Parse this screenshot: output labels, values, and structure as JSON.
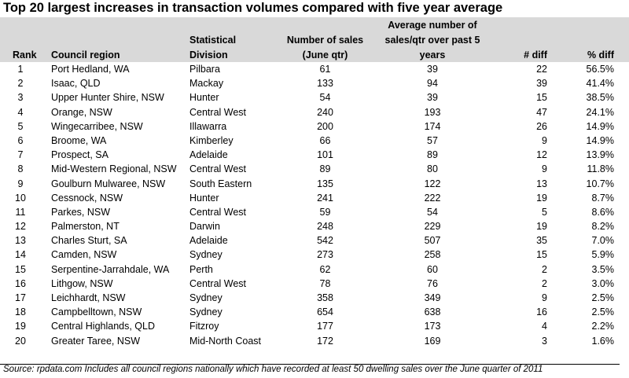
{
  "title": "Top 20 largest increases in transaction volumes compared with five year average",
  "headers": {
    "rank": "Rank",
    "region": "Council region",
    "division_line1": "Statistical",
    "division_line2": "Division",
    "sales_line1": "Number of sales",
    "sales_line2": "(June qtr)",
    "avg_line1": "Average number of",
    "avg_line2": "sales/qtr over past 5",
    "avg_line3": "years",
    "diff": "# diff",
    "pct": "% diff"
  },
  "rows": [
    {
      "rank": "1",
      "region": "Port Hedland, WA",
      "division": "Pilbara",
      "sales": "61",
      "avg": "39",
      "diff": "22",
      "pct": "56.5%"
    },
    {
      "rank": "2",
      "region": "Isaac, QLD",
      "division": "Mackay",
      "sales": "133",
      "avg": "94",
      "diff": "39",
      "pct": "41.4%"
    },
    {
      "rank": "3",
      "region": "Upper Hunter Shire, NSW",
      "division": "Hunter",
      "sales": "54",
      "avg": "39",
      "diff": "15",
      "pct": "38.5%"
    },
    {
      "rank": "4",
      "region": "Orange, NSW",
      "division": "Central West",
      "sales": "240",
      "avg": "193",
      "diff": "47",
      "pct": "24.1%"
    },
    {
      "rank": "5",
      "region": "Wingecarribee, NSW",
      "division": "Illawarra",
      "sales": "200",
      "avg": "174",
      "diff": "26",
      "pct": "14.9%"
    },
    {
      "rank": "6",
      "region": "Broome, WA",
      "division": "Kimberley",
      "sales": "66",
      "avg": "57",
      "diff": "9",
      "pct": "14.9%"
    },
    {
      "rank": "7",
      "region": "Prospect, SA",
      "division": "Adelaide",
      "sales": "101",
      "avg": "89",
      "diff": "12",
      "pct": "13.9%"
    },
    {
      "rank": "8",
      "region": "Mid-Western Regional, NSW",
      "division": "Central West",
      "sales": "89",
      "avg": "80",
      "diff": "9",
      "pct": "11.8%"
    },
    {
      "rank": "9",
      "region": "Goulburn Mulwaree, NSW",
      "division": "South Eastern",
      "sales": "135",
      "avg": "122",
      "diff": "13",
      "pct": "10.7%"
    },
    {
      "rank": "10",
      "region": "Cessnock, NSW",
      "division": "Hunter",
      "sales": "241",
      "avg": "222",
      "diff": "19",
      "pct": "8.7%"
    },
    {
      "rank": "11",
      "region": "Parkes, NSW",
      "division": "Central West",
      "sales": "59",
      "avg": "54",
      "diff": "5",
      "pct": "8.6%"
    },
    {
      "rank": "12",
      "region": "Palmerston, NT",
      "division": "Darwin",
      "sales": "248",
      "avg": "229",
      "diff": "19",
      "pct": "8.2%"
    },
    {
      "rank": "13",
      "region": "Charles Sturt, SA",
      "division": "Adelaide",
      "sales": "542",
      "avg": "507",
      "diff": "35",
      "pct": "7.0%"
    },
    {
      "rank": "14",
      "region": "Camden, NSW",
      "division": "Sydney",
      "sales": "273",
      "avg": "258",
      "diff": "15",
      "pct": "5.9%"
    },
    {
      "rank": "15",
      "region": "Serpentine-Jarrahdale, WA",
      "division": "Perth",
      "sales": "62",
      "avg": "60",
      "diff": "2",
      "pct": "3.5%"
    },
    {
      "rank": "16",
      "region": "Lithgow, NSW",
      "division": "Central West",
      "sales": "78",
      "avg": "76",
      "diff": "2",
      "pct": "3.0%"
    },
    {
      "rank": "17",
      "region": "Leichhardt, NSW",
      "division": "Sydney",
      "sales": "358",
      "avg": "349",
      "diff": "9",
      "pct": "2.5%"
    },
    {
      "rank": "18",
      "region": "Campbelltown, NSW",
      "division": "Sydney",
      "sales": "654",
      "avg": "638",
      "diff": "16",
      "pct": "2.5%"
    },
    {
      "rank": "19",
      "region": "Central Highlands, QLD",
      "division": "Fitzroy",
      "sales": "177",
      "avg": "173",
      "diff": "4",
      "pct": "2.2%"
    },
    {
      "rank": "20",
      "region": "Greater Taree, NSW",
      "division": "Mid-North Coast",
      "sales": "172",
      "avg": "169",
      "diff": "3",
      "pct": "1.6%"
    }
  ],
  "source": "Source:  rpdata.com  Includes all council regions nationally which have recorded at least 50 dwelling sales over the June quarter of 2011"
}
